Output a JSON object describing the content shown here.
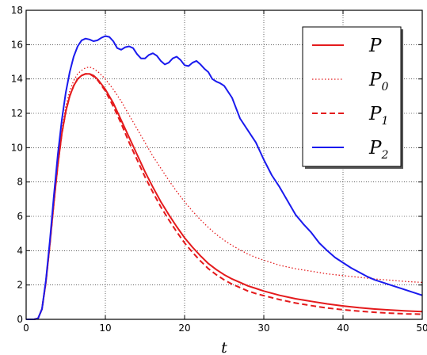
{
  "chart_data": {
    "type": "line",
    "xlabel": "t",
    "ylabel": "",
    "xlim": [
      0,
      50
    ],
    "ylim": [
      0,
      18
    ],
    "xticks": [
      "0",
      "10",
      "20",
      "30",
      "40",
      "50"
    ],
    "yticks": [
      "0",
      "2",
      "4",
      "6",
      "8",
      "10",
      "12",
      "14",
      "16",
      "18"
    ],
    "grid": true,
    "legend_position": "top-right",
    "series": [
      {
        "name": "P",
        "legend_base": "P",
        "legend_sub": "",
        "color": "#e41a1c",
        "style": "solid",
        "x": [
          0,
          1,
          1.5,
          2,
          2.5,
          3,
          3.5,
          4,
          4.5,
          5,
          5.5,
          6,
          6.5,
          7,
          7.5,
          8,
          8.5,
          9,
          10,
          11,
          12,
          13,
          14,
          15,
          16,
          17,
          18,
          19,
          20,
          21,
          22,
          23,
          24,
          25,
          26,
          27,
          28,
          29,
          30,
          32,
          34,
          36,
          38,
          40,
          42,
          44,
          46,
          48,
          50
        ],
        "y": [
          0,
          0,
          0.05,
          0.6,
          2.2,
          4.4,
          6.8,
          9.0,
          10.8,
          12.1,
          13.0,
          13.6,
          14.0,
          14.2,
          14.3,
          14.3,
          14.2,
          14.0,
          13.4,
          12.6,
          11.6,
          10.6,
          9.6,
          8.6,
          7.7,
          6.85,
          6.1,
          5.4,
          4.75,
          4.2,
          3.7,
          3.25,
          2.9,
          2.6,
          2.35,
          2.15,
          1.95,
          1.8,
          1.65,
          1.4,
          1.2,
          1.05,
          0.9,
          0.78,
          0.68,
          0.6,
          0.54,
          0.49,
          0.45
        ]
      },
      {
        "name": "P_0",
        "legend_base": "P",
        "legend_sub": "0",
        "color": "#e41a1c",
        "style": "dotted",
        "x": [
          0,
          1,
          1.5,
          2,
          2.5,
          3,
          3.5,
          4,
          4.5,
          5,
          5.5,
          6,
          6.5,
          7,
          7.5,
          8,
          8.5,
          9,
          10,
          11,
          12,
          13,
          14,
          15,
          16,
          17,
          18,
          19,
          20,
          21,
          22,
          23,
          24,
          25,
          26,
          27,
          28,
          29,
          30,
          32,
          34,
          36,
          38,
          40,
          42,
          44,
          46,
          48,
          50
        ],
        "y": [
          0,
          0,
          0.05,
          0.6,
          2.2,
          4.5,
          6.9,
          9.2,
          11.0,
          12.4,
          13.3,
          13.9,
          14.3,
          14.5,
          14.65,
          14.7,
          14.6,
          14.45,
          14.0,
          13.4,
          12.7,
          11.9,
          11.1,
          10.3,
          9.5,
          8.8,
          8.1,
          7.45,
          6.85,
          6.3,
          5.8,
          5.35,
          4.95,
          4.6,
          4.3,
          4.05,
          3.8,
          3.6,
          3.45,
          3.15,
          2.95,
          2.8,
          2.65,
          2.55,
          2.45,
          2.35,
          2.28,
          2.2,
          2.15
        ]
      },
      {
        "name": "P_1",
        "legend_base": "P",
        "legend_sub": "1",
        "color": "#e41a1c",
        "style": "dashed",
        "x": [
          0,
          1,
          1.5,
          2,
          2.5,
          3,
          3.5,
          4,
          4.5,
          5,
          5.5,
          6,
          6.5,
          7,
          7.5,
          8,
          8.5,
          9,
          10,
          11,
          12,
          13,
          14,
          15,
          16,
          17,
          18,
          19,
          20,
          21,
          22,
          23,
          24,
          25,
          26,
          27,
          28,
          29,
          30,
          32,
          34,
          36,
          38,
          40,
          42,
          44,
          46,
          48,
          50
        ],
        "y": [
          0,
          0,
          0.05,
          0.6,
          2.2,
          4.4,
          6.8,
          9.0,
          10.8,
          12.1,
          13.0,
          13.6,
          14.0,
          14.2,
          14.3,
          14.3,
          14.15,
          13.95,
          13.3,
          12.4,
          11.4,
          10.3,
          9.3,
          8.3,
          7.4,
          6.55,
          5.8,
          5.1,
          4.45,
          3.9,
          3.4,
          2.95,
          2.6,
          2.3,
          2.05,
          1.85,
          1.65,
          1.5,
          1.38,
          1.15,
          0.95,
          0.8,
          0.66,
          0.56,
          0.48,
          0.41,
          0.36,
          0.32,
          0.3
        ]
      },
      {
        "name": "P_2",
        "legend_base": "P",
        "legend_sub": "2",
        "color": "#1a1aee",
        "style": "solid",
        "x": [
          0,
          1,
          1.5,
          2,
          2.5,
          3,
          3.5,
          4,
          4.5,
          5,
          5.5,
          6,
          6.5,
          7,
          7.5,
          8,
          8.5,
          9,
          9.5,
          10,
          10.5,
          11,
          11.5,
          12,
          12.5,
          13,
          13.5,
          14,
          14.5,
          15,
          15.5,
          16,
          16.5,
          17,
          17.5,
          18,
          18.5,
          19,
          19.5,
          20,
          20.5,
          21,
          21.5,
          22,
          22.5,
          23,
          23.5,
          24,
          24.5,
          25,
          26,
          27,
          28,
          29,
          30,
          31,
          32,
          33,
          34,
          35,
          36,
          37,
          38,
          39,
          40,
          41,
          42,
          43,
          44,
          45,
          46,
          47,
          48,
          49,
          50
        ],
        "y": [
          0,
          0,
          0.05,
          0.6,
          2.3,
          4.6,
          7.2,
          9.6,
          11.6,
          13.2,
          14.4,
          15.3,
          15.9,
          16.25,
          16.35,
          16.3,
          16.2,
          16.25,
          16.4,
          16.5,
          16.45,
          16.2,
          15.8,
          15.7,
          15.85,
          15.9,
          15.8,
          15.45,
          15.2,
          15.2,
          15.4,
          15.5,
          15.35,
          15.05,
          14.85,
          14.95,
          15.2,
          15.3,
          15.1,
          14.8,
          14.75,
          14.95,
          15.05,
          14.85,
          14.6,
          14.4,
          14.0,
          13.85,
          13.75,
          13.6,
          12.9,
          11.7,
          11.0,
          10.3,
          9.3,
          8.4,
          7.7,
          6.9,
          6.1,
          5.55,
          5.05,
          4.45,
          4.0,
          3.6,
          3.3,
          3.0,
          2.75,
          2.5,
          2.3,
          2.15,
          2.0,
          1.85,
          1.7,
          1.55,
          1.4
        ]
      }
    ]
  }
}
